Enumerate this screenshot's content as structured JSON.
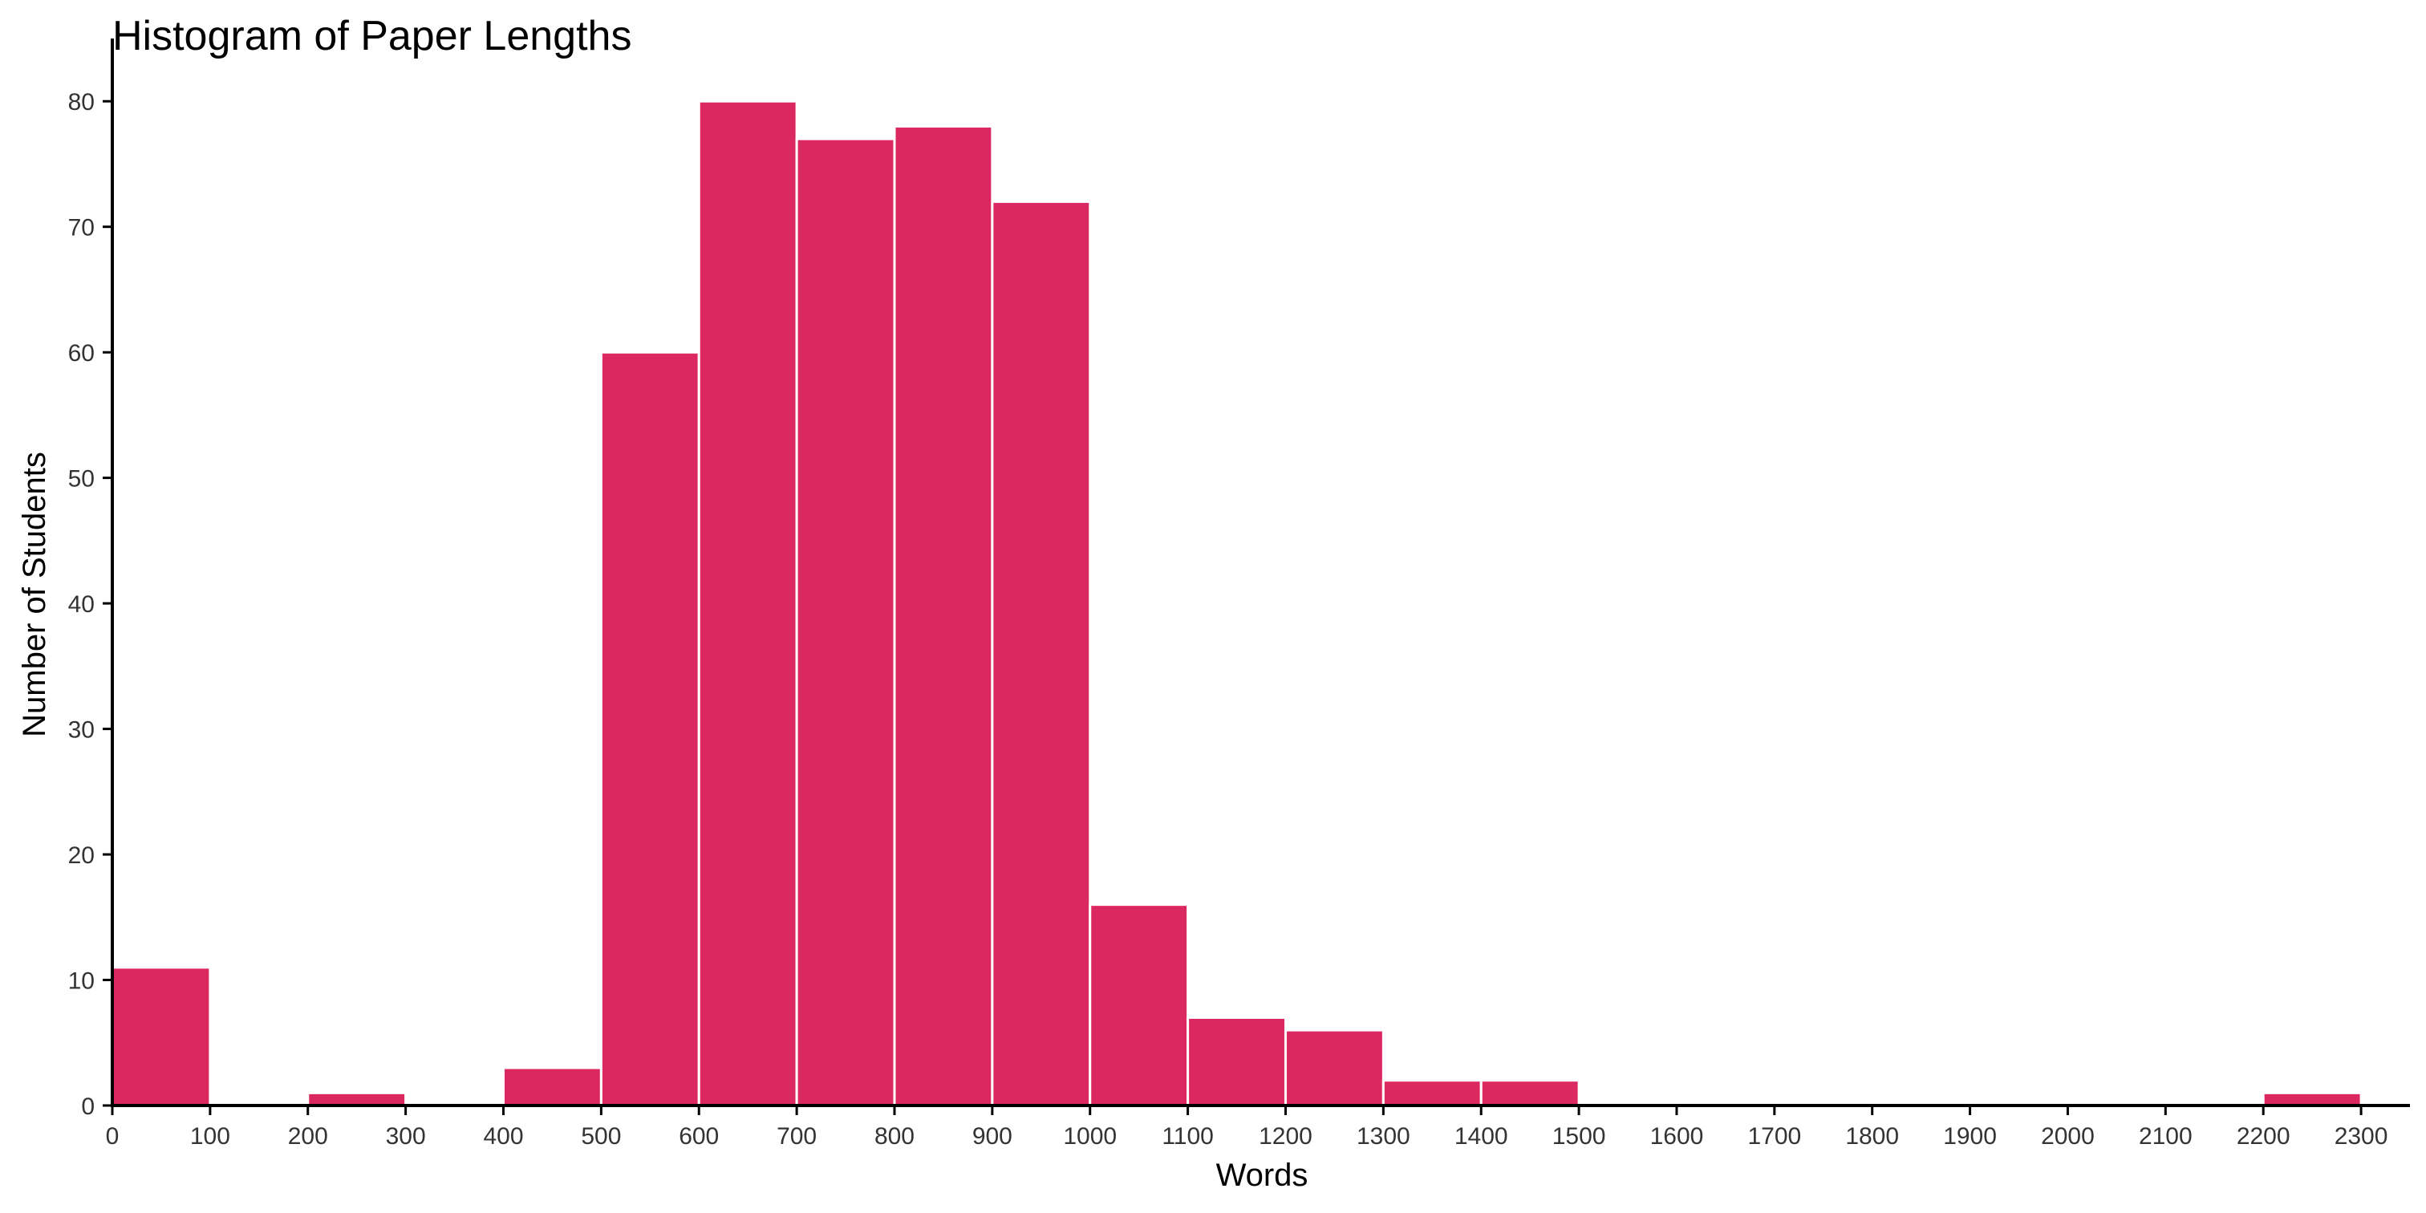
{
  "chart_data": {
    "type": "bar",
    "title": "Histogram of Paper Lengths",
    "xlabel": "Words",
    "ylabel": "Number of Students",
    "bin_width": 100,
    "bins": [
      {
        "start": 0,
        "end": 100,
        "count": 11
      },
      {
        "start": 100,
        "end": 200,
        "count": 0
      },
      {
        "start": 200,
        "end": 300,
        "count": 1
      },
      {
        "start": 300,
        "end": 400,
        "count": 0
      },
      {
        "start": 400,
        "end": 500,
        "count": 3
      },
      {
        "start": 500,
        "end": 600,
        "count": 60
      },
      {
        "start": 600,
        "end": 700,
        "count": 80
      },
      {
        "start": 700,
        "end": 800,
        "count": 77
      },
      {
        "start": 800,
        "end": 900,
        "count": 78
      },
      {
        "start": 900,
        "end": 1000,
        "count": 72
      },
      {
        "start": 1000,
        "end": 1100,
        "count": 16
      },
      {
        "start": 1100,
        "end": 1200,
        "count": 7
      },
      {
        "start": 1200,
        "end": 1300,
        "count": 6
      },
      {
        "start": 1300,
        "end": 1400,
        "count": 2
      },
      {
        "start": 1400,
        "end": 1500,
        "count": 2
      },
      {
        "start": 1500,
        "end": 1600,
        "count": 0
      },
      {
        "start": 1600,
        "end": 1700,
        "count": 0
      },
      {
        "start": 1700,
        "end": 1800,
        "count": 0
      },
      {
        "start": 1800,
        "end": 1900,
        "count": 0
      },
      {
        "start": 1900,
        "end": 2000,
        "count": 0
      },
      {
        "start": 2000,
        "end": 2100,
        "count": 0
      },
      {
        "start": 2100,
        "end": 2200,
        "count": 0
      },
      {
        "start": 2200,
        "end": 2300,
        "count": 1
      }
    ],
    "xlim": [
      0,
      2350
    ],
    "ylim": [
      0,
      85
    ],
    "xticks": [
      0,
      100,
      200,
      300,
      400,
      500,
      600,
      700,
      800,
      900,
      1000,
      1100,
      1200,
      1300,
      1400,
      1500,
      1600,
      1700,
      1800,
      1900,
      2000,
      2100,
      2200,
      2300
    ],
    "yticks": [
      0,
      10,
      20,
      30,
      40,
      50,
      60,
      70,
      80
    ],
    "grid": false,
    "legend": "none",
    "bar_color": "#DC2861",
    "bar_edge_color": "#ffffff"
  }
}
